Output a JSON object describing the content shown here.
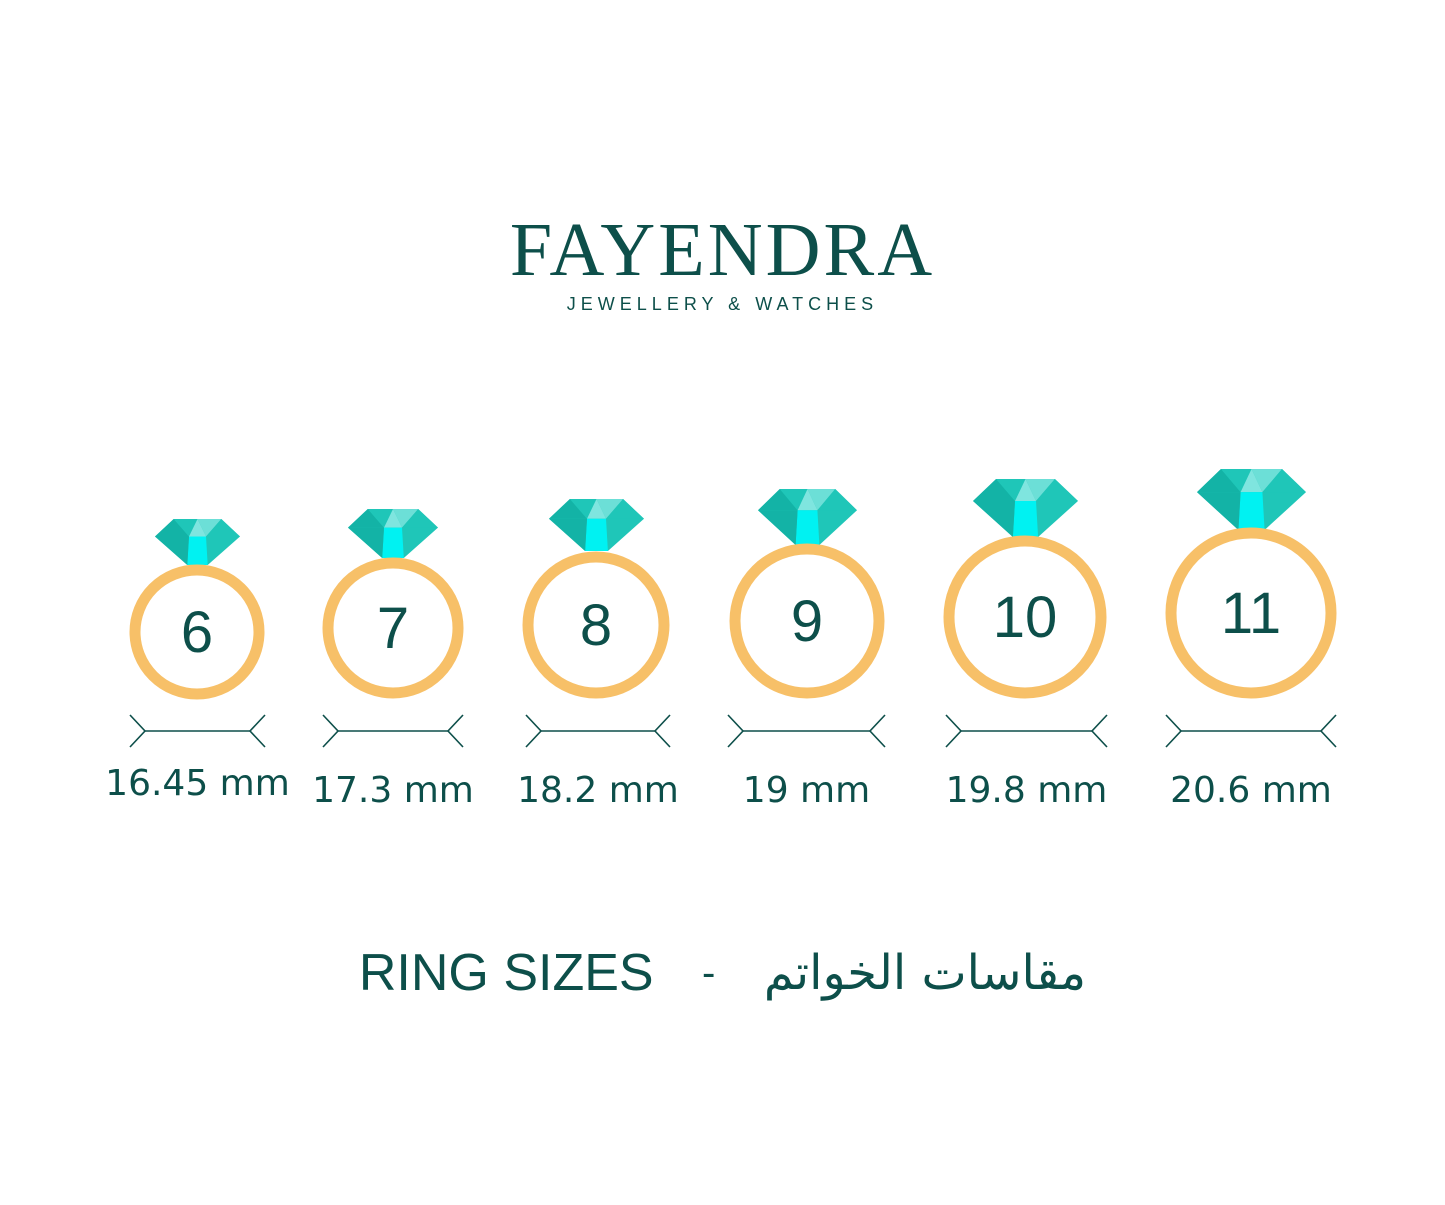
{
  "brand": {
    "name": "FAYENDRA",
    "tagline": "JEWELLERY & WATCHES"
  },
  "colors": {
    "text": "#0d4f4a",
    "ring": "#f7c068",
    "gem_main": "#1fc6b8",
    "gem_light": "#7fe5df",
    "gem_bright": "#00f2f2",
    "gem_dark": "#13b3a6"
  },
  "icons": [
    "diamond-icon",
    "ring-icon",
    "measure-arrow-icon"
  ],
  "rings": [
    {
      "size": "6",
      "measure": "16.45 mm"
    },
    {
      "size": "7",
      "measure": "17.3 mm"
    },
    {
      "size": "8",
      "measure": "18.2 mm"
    },
    {
      "size": "9",
      "measure": "19 mm"
    },
    {
      "size": "10",
      "measure": "19.8 mm"
    },
    {
      "size": "11",
      "measure": "20.6 mm"
    }
  ],
  "footer": {
    "title_en": "RING SIZES",
    "separator": "-",
    "title_ar": "مقاسات الخواتم"
  }
}
